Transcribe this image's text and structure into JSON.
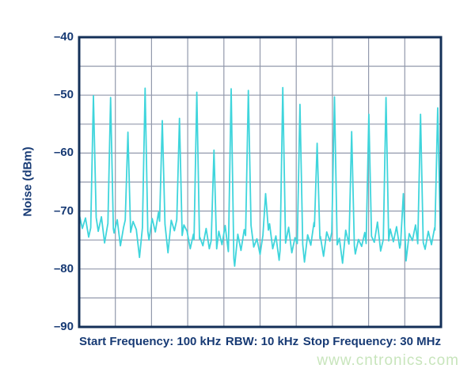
{
  "chart_data": {
    "type": "line",
    "title": "",
    "ylabel": "Noise (dBm)",
    "xlabel_segments": [
      "Start Frequency: 100 kHz",
      "RBW: 10 kHz",
      "Stop Frequency: 30 MHz"
    ],
    "ylim": [
      -90,
      -40
    ],
    "xlim_mhz": [
      0.1,
      30
    ],
    "x_divisions": 10,
    "grid_dbm_step": 5,
    "legend": "none",
    "grid": "on",
    "y_tick_values": [
      -40,
      -50,
      -60,
      -70,
      -80,
      -90
    ],
    "y_tick_labels": [
      "–40",
      "–50",
      "–60",
      "–70",
      "–80",
      "–90"
    ],
    "colors": {
      "trace": "#3fd5dc",
      "grid": "#9299ac",
      "border": "#143058",
      "label": "#173a74"
    },
    "spikes": [
      {
        "f_mhz": 1.28,
        "peak_dbm": -50.1
      },
      {
        "f_mhz": 2.7,
        "peak_dbm": -50.4
      },
      {
        "f_mhz": 4.13,
        "peak_dbm": -56.4
      },
      {
        "f_mhz": 5.55,
        "peak_dbm": -48.8
      },
      {
        "f_mhz": 6.97,
        "peak_dbm": -54.4
      },
      {
        "f_mhz": 8.39,
        "peak_dbm": -54.0
      },
      {
        "f_mhz": 9.82,
        "peak_dbm": -49.5
      },
      {
        "f_mhz": 11.24,
        "peak_dbm": -59.5
      },
      {
        "f_mhz": 12.66,
        "peak_dbm": -48.9
      },
      {
        "f_mhz": 14.08,
        "peak_dbm": -49.2
      },
      {
        "f_mhz": 15.51,
        "peak_dbm": -67.0
      },
      {
        "f_mhz": 16.93,
        "peak_dbm": -48.7
      },
      {
        "f_mhz": 18.35,
        "peak_dbm": -51.6
      },
      {
        "f_mhz": 19.77,
        "peak_dbm": -58.3
      },
      {
        "f_mhz": 21.2,
        "peak_dbm": -50.3
      },
      {
        "f_mhz": 22.62,
        "peak_dbm": -56.3
      },
      {
        "f_mhz": 24.04,
        "peak_dbm": -53.3
      },
      {
        "f_mhz": 25.46,
        "peak_dbm": -50.4
      },
      {
        "f_mhz": 26.89,
        "peak_dbm": -67.0
      },
      {
        "f_mhz": 28.31,
        "peak_dbm": -53.3
      },
      {
        "f_mhz": 29.73,
        "peak_dbm": -52.2
      }
    ],
    "noise_floor_dbm": [
      -70.5,
      -73.0,
      -71.2,
      -74.5,
      -72.0,
      -69.8,
      -73.5,
      -71.0,
      -75.5,
      -72.3,
      -70.6,
      -73.8,
      -71.5,
      -76.0,
      -72.8,
      -70.4,
      -74.2,
      -71.8,
      -73.2,
      -78.0,
      -72.5,
      -70.8,
      -75.0,
      -71.3,
      -73.6,
      -70.2,
      -74.8,
      -72.0,
      -77.2,
      -71.6,
      -73.4,
      -70.9,
      -75.8,
      -72.4,
      -73.5,
      -76.5,
      -74.0,
      -78.5,
      -74.5,
      -76.0,
      -73.0,
      -76.5,
      -74.2,
      -78.0,
      -73.5,
      -75.8,
      -72.5,
      -77.0,
      -74.5,
      -79.5,
      -74.0,
      -76.8,
      -73.2,
      -75.5,
      -71.8,
      -76.2,
      -74.8,
      -77.5,
      -73.8,
      -75.0,
      -72.2,
      -76.5,
      -74.3,
      -78.5,
      -73.0,
      -75.6,
      -72.8,
      -77.2,
      -74.6,
      -76.0,
      -73.4,
      -78.8,
      -74.1,
      -75.9,
      -72.0,
      -76.7,
      -74.4,
      -77.8,
      -73.6,
      -75.2,
      -72.6,
      -76.3,
      -74.7,
      -79.0,
      -73.3,
      -75.7,
      -72.3,
      -77.4,
      -74.9,
      -76.1,
      -73.7,
      -78.2,
      -74.2,
      -75.4,
      -71.9,
      -76.9,
      -74.5,
      -77.6,
      -73.1,
      -75.3,
      -72.7,
      -76.4,
      -74.0,
      -78.6,
      -73.9,
      -75.1,
      -72.4,
      -77.0,
      -74.6,
      -76.6,
      -73.5,
      -75.8,
      -72.9,
      -76.2,
      -74.3
    ]
  },
  "watermark": {
    "text": "www.cntronics.com",
    "color": "#c8e5bc"
  }
}
